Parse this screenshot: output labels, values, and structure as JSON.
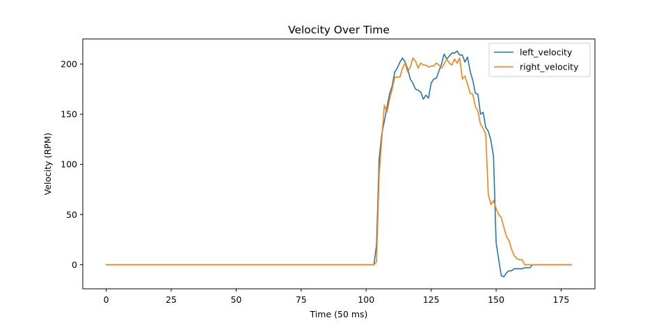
{
  "chart_data": {
    "type": "line",
    "title": "Velocity Over Time",
    "xlabel": "Time (50 ms)",
    "ylabel": "Velocity (RPM)",
    "xlim": [
      -9,
      188
    ],
    "ylim": [
      -24,
      225
    ],
    "xticks": [
      0,
      25,
      50,
      75,
      100,
      125,
      150,
      175
    ],
    "yticks": [
      0,
      50,
      100,
      150,
      200
    ],
    "grid": false,
    "legend_position": "top-right",
    "series": [
      {
        "name": "left_velocity",
        "color": "#1f77b4",
        "x": [
          0,
          103,
          104,
          105,
          106,
          107,
          108,
          109,
          110,
          111,
          112,
          113,
          114,
          115,
          116,
          117,
          118,
          119,
          120,
          121,
          122,
          123,
          124,
          125,
          126,
          127,
          128,
          129,
          130,
          131,
          132,
          133,
          134,
          135,
          136,
          137,
          138,
          139,
          140,
          141,
          142,
          143,
          144,
          145,
          146,
          147,
          148,
          149,
          150,
          151,
          152,
          153,
          154,
          155,
          156,
          157,
          158,
          159,
          160,
          161,
          162,
          163,
          164,
          165,
          179
        ],
        "y": [
          0,
          0,
          20,
          105,
          130,
          143,
          157,
          170,
          178,
          192,
          196,
          202,
          206,
          202,
          195,
          185,
          181,
          175,
          174,
          172,
          165,
          169,
          166,
          181,
          185,
          186,
          193,
          200,
          210,
          205,
          208,
          211,
          211,
          213,
          209,
          209,
          202,
          207,
          193,
          184,
          171,
          170,
          150,
          152,
          137,
          133,
          124,
          108,
          22,
          5,
          -11,
          -12,
          -8,
          -6,
          -6,
          -4,
          -4,
          -4,
          -4,
          -3,
          -3,
          -3,
          0,
          0,
          0
        ]
      },
      {
        "name": "right_velocity",
        "color": "#ff7f0e",
        "x": [
          0,
          103,
          104,
          105,
          106,
          107,
          108,
          109,
          110,
          111,
          112,
          113,
          114,
          115,
          116,
          117,
          118,
          119,
          120,
          121,
          122,
          123,
          124,
          125,
          126,
          127,
          128,
          129,
          130,
          131,
          132,
          133,
          134,
          135,
          136,
          137,
          138,
          139,
          140,
          141,
          142,
          143,
          144,
          145,
          146,
          147,
          148,
          149,
          150,
          151,
          152,
          153,
          154,
          155,
          156,
          157,
          158,
          159,
          160,
          161,
          162,
          163,
          164,
          165,
          179
        ],
        "y": [
          0,
          0,
          3,
          90,
          125,
          159,
          152,
          165,
          175,
          187,
          187,
          187,
          196,
          201,
          192,
          197,
          206,
          203,
          196,
          201,
          199,
          199,
          197,
          198,
          198,
          201,
          199,
          196,
          200,
          205,
          201,
          199,
          205,
          201,
          206,
          185,
          188,
          180,
          171,
          170,
          158,
          153,
          140,
          136,
          130,
          70,
          60,
          64,
          56,
          50,
          47,
          37,
          28,
          24,
          15,
          9,
          6,
          5,
          5,
          0,
          0,
          0,
          0,
          0,
          0
        ]
      }
    ]
  }
}
